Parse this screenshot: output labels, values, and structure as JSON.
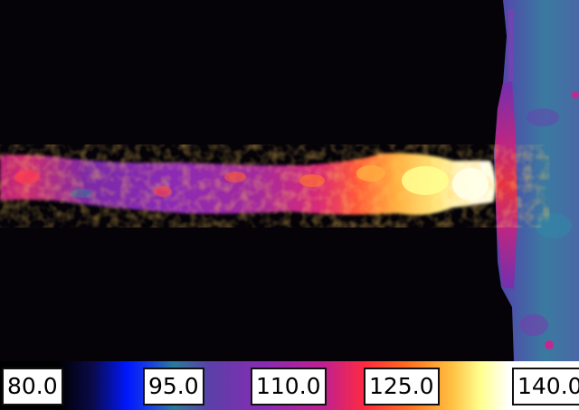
{
  "colors": {
    "background": "#050308",
    "palette": [
      "#000000",
      "#0a0a3c",
      "#0030ff",
      "#2070a0",
      "#4a3aa0",
      "#8a2ab0",
      "#c0208a",
      "#ff2a40",
      "#ff7020",
      "#ffc040",
      "#ffff90",
      "#ffffff"
    ]
  },
  "scale": {
    "ticks": [
      {
        "label": "80.0"
      },
      {
        "label": "95.0"
      },
      {
        "label": "110.0"
      },
      {
        "label": "125.0"
      },
      {
        "label": "140.0"
      }
    ]
  }
}
